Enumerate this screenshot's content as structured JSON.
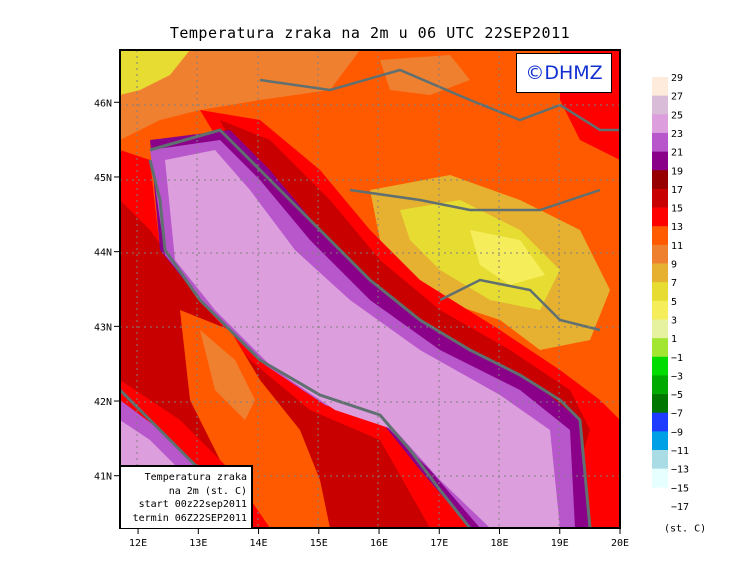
{
  "title": "Temperatura zraka na 2m u 06 UTC 22SEP2011",
  "logo": "©DHMZ",
  "info_box": {
    "line1": "Temperatura zraka",
    "line2": "na 2m (st. C)",
    "line3": "start 00z22sep2011",
    "line4": "termin 06Z22SEP2011"
  },
  "chart_data": {
    "type": "heatmap",
    "title": "Temperatura zraka na 2m u 06 UTC 22SEP2011",
    "variable": "2m air temperature",
    "units_label": "(st. C)",
    "x_ticks": [
      "12E",
      "13E",
      "14E",
      "15E",
      "16E",
      "17E",
      "18E",
      "19E",
      "20E"
    ],
    "y_ticks": [
      "46N",
      "45N",
      "44N",
      "43N",
      "42N",
      "41N"
    ],
    "xlim": [
      11.7,
      20.0
    ],
    "ylim": [
      40.3,
      46.7
    ],
    "grid": true,
    "colorbar": {
      "labels": [
        "29",
        "27",
        "25",
        "23",
        "21",
        "19",
        "17",
        "15",
        "13",
        "11",
        "9",
        "7",
        "5",
        "3",
        "1",
        "−1",
        "−3",
        "−5",
        "−7",
        "−9",
        "−11",
        "−13",
        "−15",
        "−17"
      ],
      "colors": [
        "#feebdc",
        "#d8bcd8",
        "#dc9edc",
        "#b856cc",
        "#8a0088",
        "#960000",
        "#c80000",
        "#ff0000",
        "#ff5a00",
        "#ee8030",
        "#e6b030",
        "#e6dc32",
        "#f5ee5a",
        "#e6f2a0",
        "#a2e632",
        "#00dc00",
        "#00aa00",
        "#007800",
        "#1e3cff",
        "#00a0e6",
        "#aadce6",
        "#e6ffff"
      ]
    }
  }
}
